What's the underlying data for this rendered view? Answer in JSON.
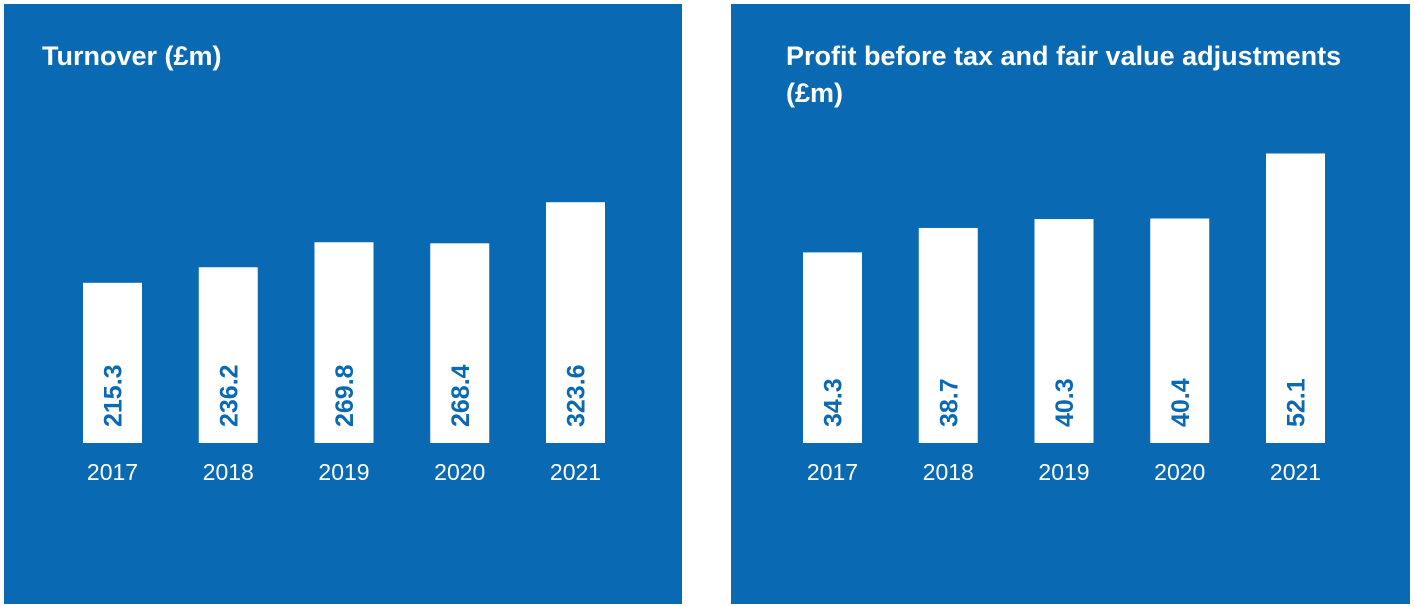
{
  "colors": {
    "panel_background": "#0969b3",
    "bar_fill": "#ffffff",
    "value_text": "#0969b3",
    "axis_text": "#ffffff"
  },
  "chart_data": [
    {
      "type": "bar",
      "title": "Turnover (£m)",
      "categories": [
        "2017",
        "2018",
        "2019",
        "2020",
        "2021"
      ],
      "values": [
        215.3,
        236.2,
        269.8,
        268.4,
        323.6
      ],
      "value_labels": [
        "215.3",
        "236.2",
        "269.8",
        "268.4",
        "323.6"
      ],
      "xlabel": "",
      "ylabel": "",
      "ylim": [
        0,
        590
      ],
      "grid": false,
      "legend": "none",
      "data_labels": "inside-bar-rotated"
    },
    {
      "type": "bar",
      "title": "Profit before tax and fair value adjustments (£m)",
      "categories": [
        "2017",
        "2018",
        "2019",
        "2020",
        "2021"
      ],
      "values": [
        34.3,
        38.7,
        40.3,
        40.4,
        52.1
      ],
      "value_labels": [
        "34.3",
        "38.7",
        "40.3",
        "40.4",
        "52.1"
      ],
      "xlabel": "",
      "ylabel": "",
      "ylim": [
        0,
        79
      ],
      "grid": false,
      "legend": "none",
      "data_labels": "inside-bar-rotated"
    }
  ]
}
